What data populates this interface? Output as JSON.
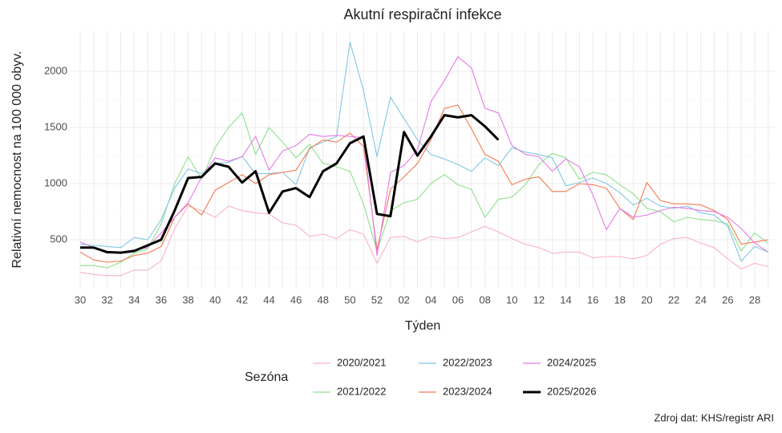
{
  "chart_data": {
    "type": "line",
    "title": "Akutní respirační infekce",
    "x_label": "Týden",
    "y_label": "Relativní nemocnost na 100 000 obyv.",
    "legend_title": "Sezóna",
    "caption": "Zdroj dat: KHS/registr ARI",
    "categories": [
      "30",
      null,
      "32",
      null,
      "34",
      null,
      "36",
      null,
      "38",
      null,
      "40",
      null,
      "42",
      null,
      "44",
      null,
      "46",
      null,
      "48",
      null,
      "50",
      null,
      "52",
      null,
      "02",
      null,
      "04",
      null,
      "06",
      null,
      "08",
      null,
      "10",
      null,
      "12",
      null,
      "14",
      null,
      "16",
      null,
      "18",
      null,
      "20",
      null,
      "22",
      null,
      "24",
      null,
      "26",
      null,
      "28",
      null
    ],
    "ylim": [
      70,
      2360
    ],
    "yticks": [
      500,
      1000,
      1500,
      2000
    ],
    "grid": true,
    "legend_position": "bottom",
    "series": [
      {
        "name": "2020/2021",
        "color": "#f9b3c6",
        "values": [
          210,
          190,
          180,
          180,
          230,
          230,
          310,
          600,
          800,
          760,
          700,
          800,
          760,
          740,
          730,
          650,
          630,
          530,
          550,
          510,
          590,
          550,
          290,
          520,
          530,
          480,
          530,
          510,
          520,
          570,
          620,
          570,
          510,
          460,
          430,
          380,
          390,
          390,
          340,
          350,
          350,
          330,
          360,
          460,
          510,
          520,
          470,
          430,
          330,
          240,
          290,
          260
        ]
      },
      {
        "name": "2021/2022",
        "color": "#8fe08f",
        "values": [
          270,
          270,
          250,
          300,
          380,
          420,
          640,
          1000,
          1240,
          1040,
          1320,
          1500,
          1630,
          1260,
          1500,
          1370,
          1230,
          1350,
          1180,
          1150,
          1110,
          820,
          400,
          760,
          830,
          860,
          1000,
          1080,
          990,
          950,
          700,
          860,
          880,
          990,
          1170,
          1270,
          1230,
          1040,
          1100,
          1080,
          990,
          910,
          780,
          750,
          660,
          700,
          680,
          670,
          640,
          400,
          560,
          470
        ]
      },
      {
        "name": "2022/2023",
        "color": "#80c8e4",
        "values": [
          460,
          450,
          440,
          430,
          520,
          500,
          680,
          960,
          1130,
          1090,
          1180,
          1190,
          1240,
          1090,
          1090,
          1100,
          990,
          1320,
          1370,
          1420,
          2260,
          1830,
          1240,
          1770,
          1580,
          1390,
          1260,
          1220,
          1170,
          1110,
          1230,
          1160,
          1320,
          1280,
          1260,
          1230,
          980,
          1010,
          1050,
          1000,
          920,
          810,
          870,
          800,
          780,
          800,
          740,
          720,
          620,
          310,
          440,
          390
        ]
      },
      {
        "name": "2023/2024",
        "color": "#f47a52",
        "values": [
          390,
          320,
          300,
          310,
          360,
          380,
          440,
          700,
          820,
          720,
          940,
          1010,
          1080,
          1000,
          1080,
          1100,
          1120,
          1310,
          1390,
          1370,
          1450,
          1330,
          410,
          950,
          1060,
          1180,
          1390,
          1670,
          1700,
          1490,
          1260,
          1200,
          990,
          1040,
          1060,
          930,
          930,
          1000,
          990,
          960,
          780,
          680,
          1010,
          850,
          820,
          820,
          810,
          760,
          680,
          460,
          480,
          500
        ]
      },
      {
        "name": "2024/2025",
        "color": "#e57be6",
        "values": [
          480,
          430,
          380,
          390,
          410,
          430,
          560,
          700,
          830,
          1060,
          1230,
          1200,
          1240,
          1420,
          1120,
          1290,
          1340,
          1440,
          1420,
          1430,
          1420,
          1410,
          360,
          1100,
          1160,
          1300,
          1730,
          1920,
          2130,
          2030,
          1670,
          1630,
          1340,
          1260,
          1240,
          1110,
          1220,
          1150,
          900,
          590,
          780,
          700,
          720,
          760,
          790,
          780,
          760,
          750,
          700,
          600,
          470,
          390
        ]
      },
      {
        "name": "2025/2026",
        "color": "#000000",
        "values": [
          430,
          430,
          390,
          385,
          400,
          450,
          500,
          760,
          1050,
          1060,
          1180,
          1150,
          1010,
          1110,
          740,
          930,
          960,
          880,
          1110,
          1180,
          1360,
          1420,
          730,
          710,
          1460,
          1250,
          1420,
          1610,
          1590,
          1610,
          1510,
          1390,
          null,
          null,
          null,
          null,
          null,
          null,
          null,
          null,
          null,
          null,
          null,
          null,
          null,
          null,
          null,
          null,
          null,
          null,
          null,
          null
        ]
      }
    ]
  }
}
